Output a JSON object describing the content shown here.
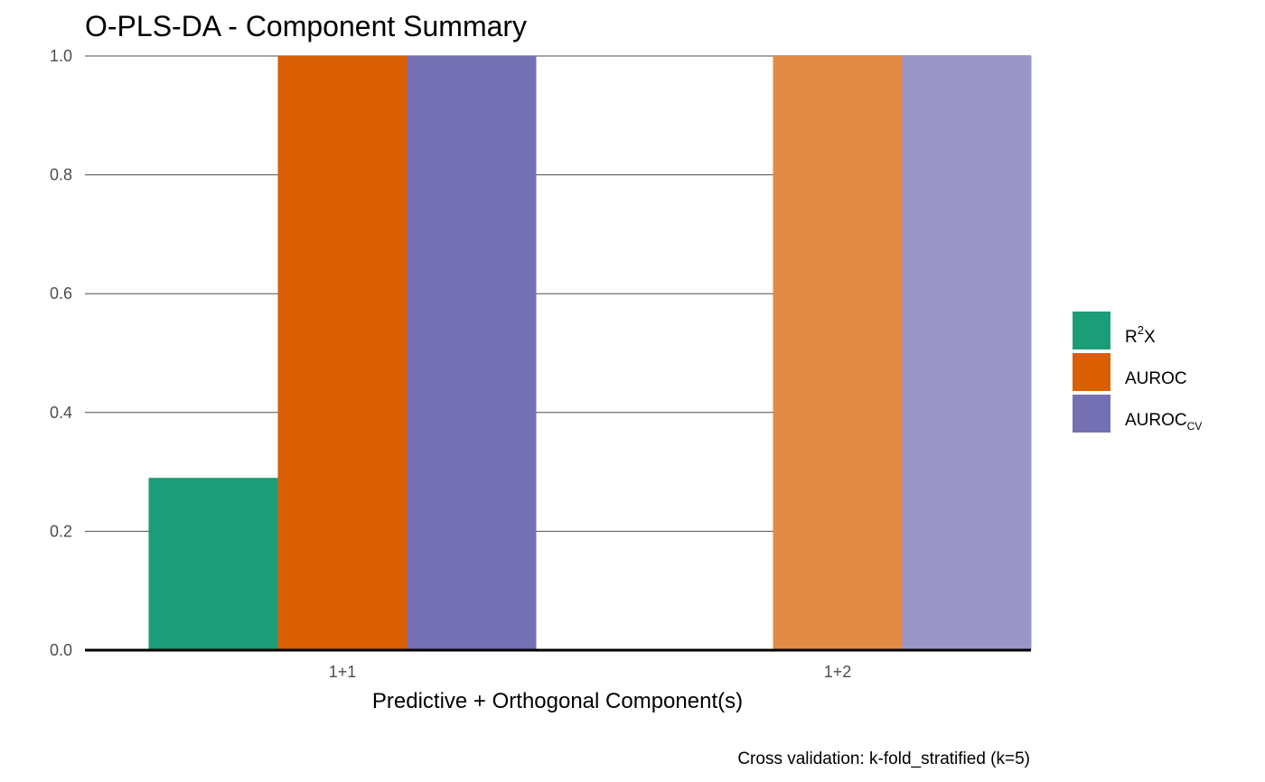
{
  "chart_data": {
    "type": "bar",
    "title": "O-PLS-DA  - Component Summary",
    "xlabel": "Predictive + Orthogonal Component(s)",
    "ylabel": "",
    "caption": "Cross validation: k-fold_stratified (k=5)",
    "ylim": [
      0,
      1
    ],
    "yticks": [
      0.0,
      0.2,
      0.4,
      0.6,
      0.8,
      1.0
    ],
    "ytick_labels": [
      "0.0",
      "0.2",
      "0.4",
      "0.6",
      "0.8",
      "1.0"
    ],
    "grid": "horizontal",
    "legend_position": "right",
    "categories": [
      "1+1",
      "1+2"
    ],
    "series": [
      {
        "name": "R2X",
        "legend_main": "R",
        "legend_sup": "2",
        "legend_tail": "X",
        "legend_sub": "",
        "color": "#1B9E77",
        "faded_color": "#5FBA9E",
        "values": [
          0.29,
          null
        ]
      },
      {
        "name": "AUROC",
        "legend_main": "AUROC",
        "legend_sup": "",
        "legend_tail": "",
        "legend_sub": "",
        "color": "#D95F02",
        "faded_color": "#E38A46",
        "values": [
          1.0,
          1.0
        ]
      },
      {
        "name": "AUROCcv",
        "legend_main": "AUROC",
        "legend_sup": "",
        "legend_tail": "",
        "legend_sub": "CV",
        "color": "#7570B3",
        "faded_color": "#9A96C8",
        "values": [
          1.0,
          1.0
        ]
      }
    ],
    "highlighted_category": "1+1"
  }
}
